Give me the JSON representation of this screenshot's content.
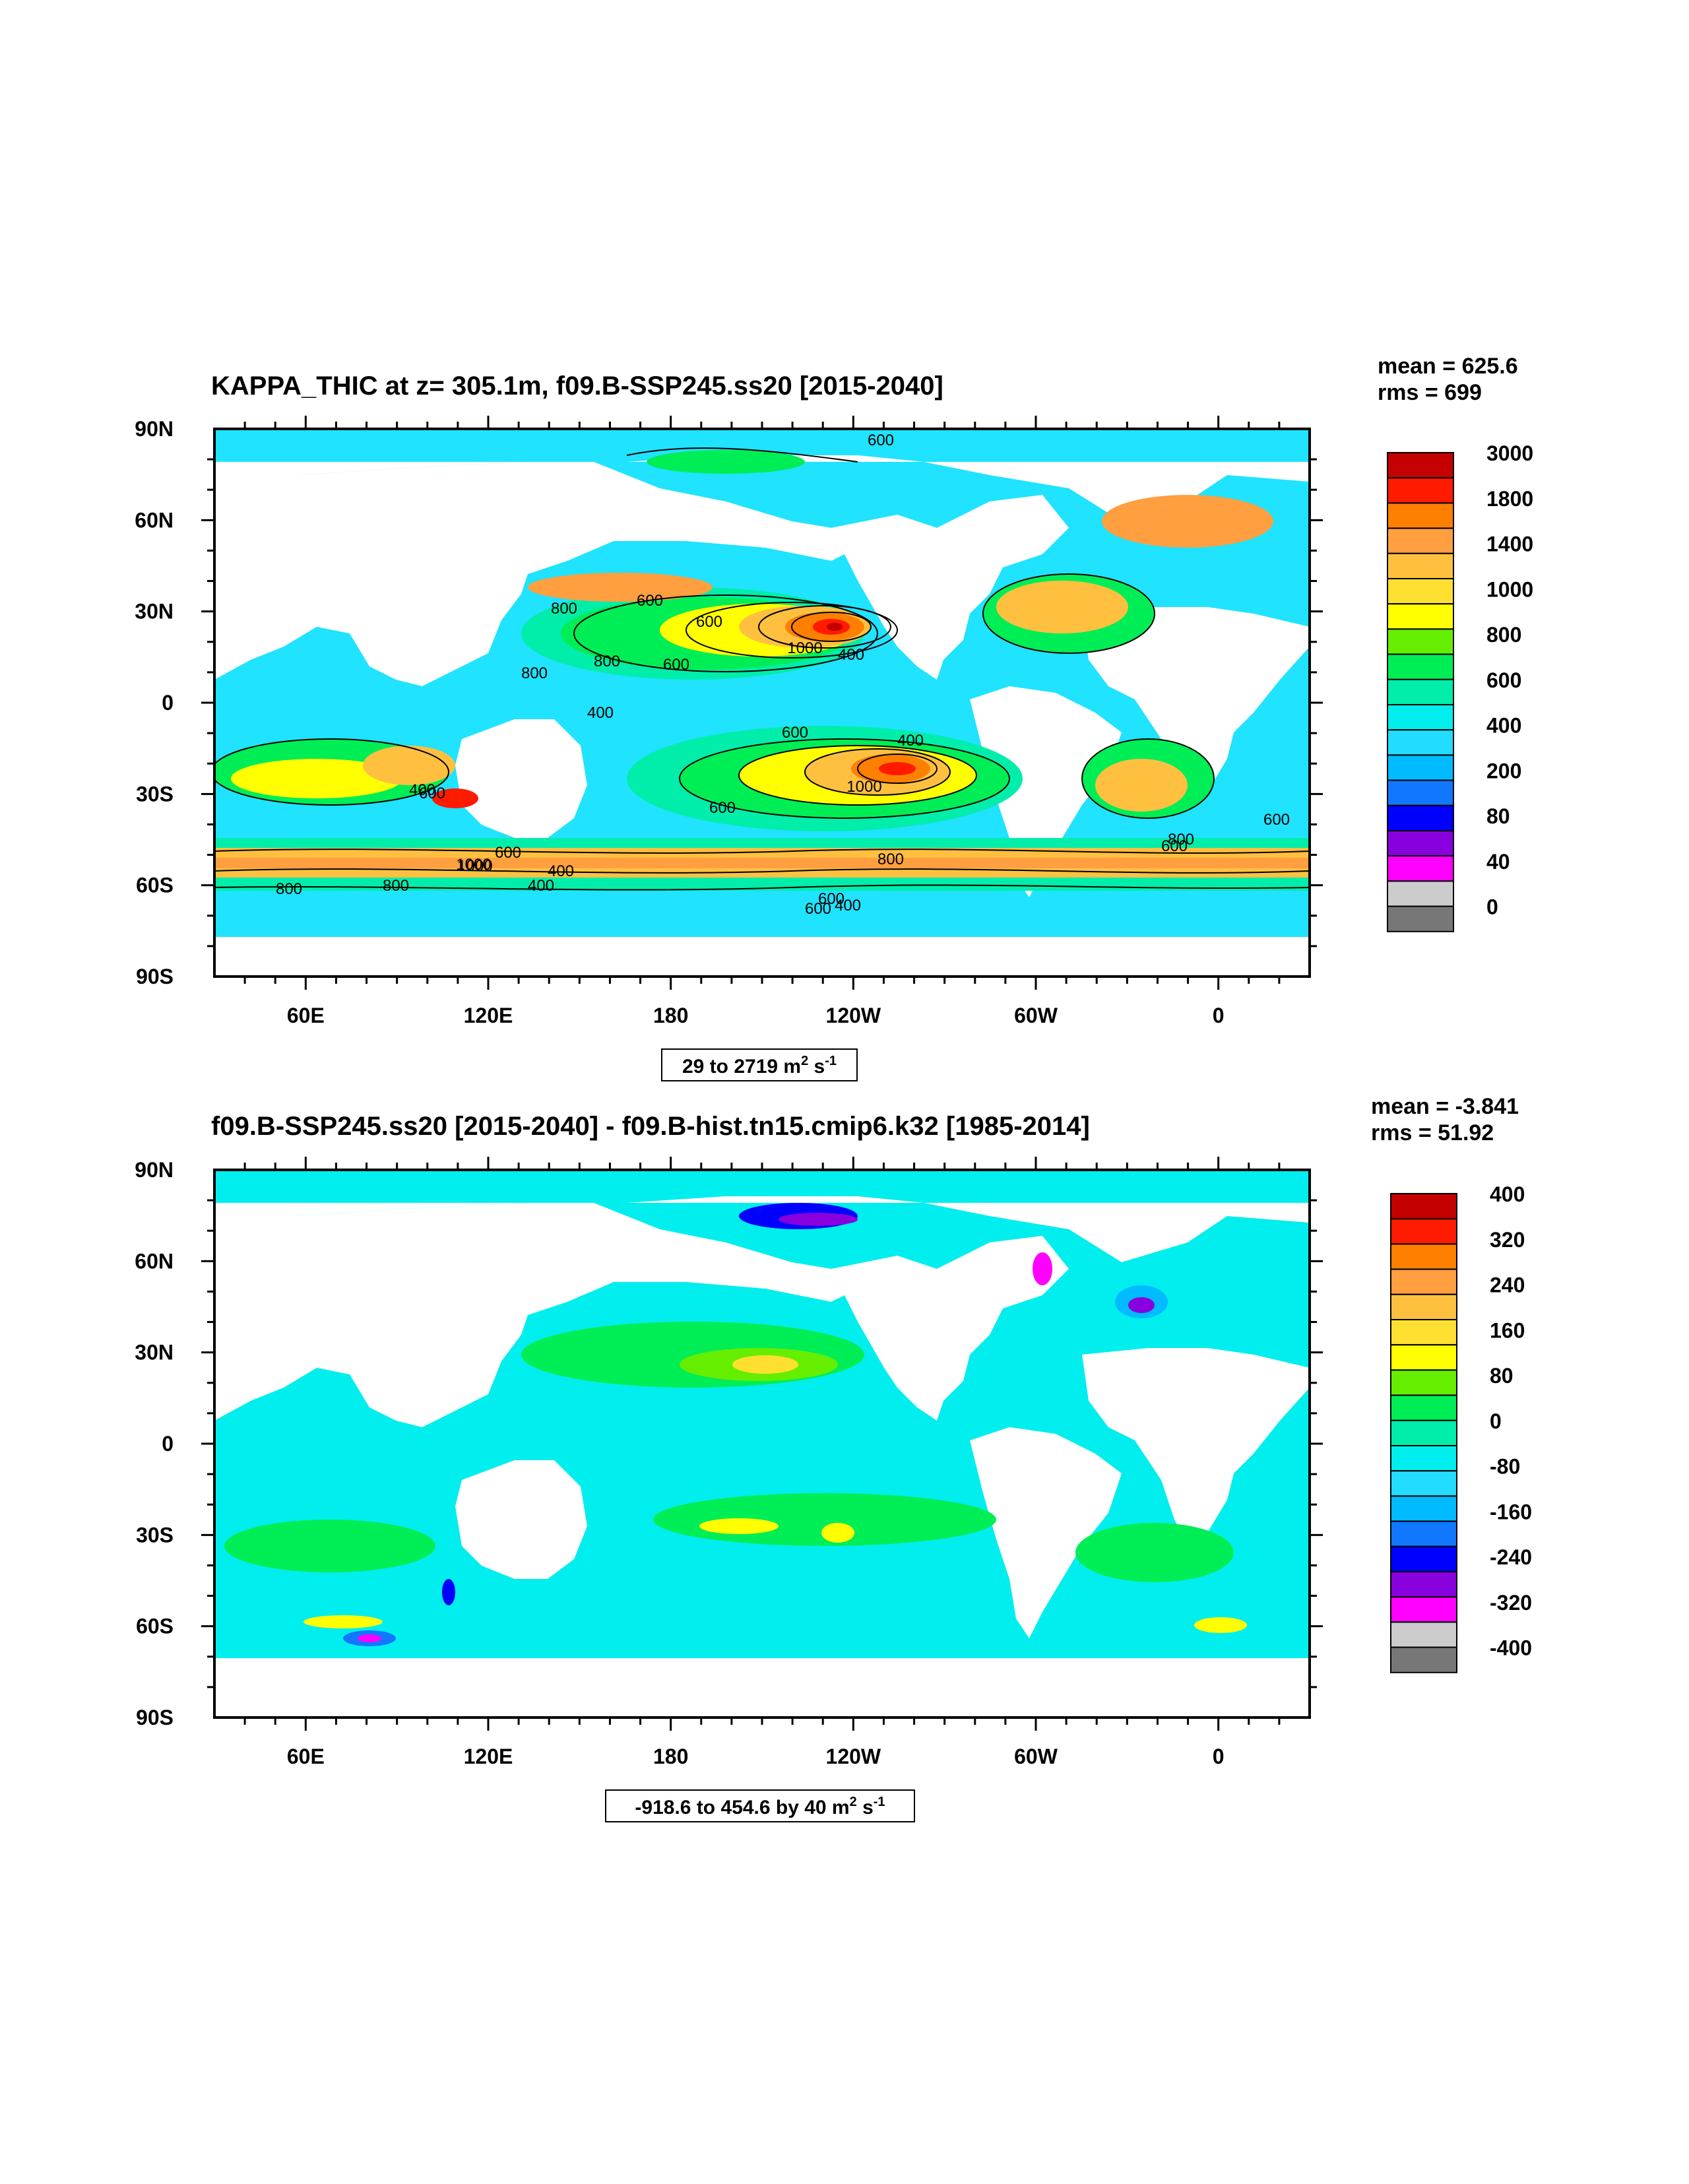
{
  "panels": [
    {
      "id": "top",
      "title": "KAPPA_THIC at z= 305.1m, f09.B-SSP245.ss20 [2015-2040]",
      "stats": {
        "mean": "mean = 625.6",
        "rms": "rms = 699"
      },
      "lat_labels": [
        "90N",
        "60N",
        "30N",
        "0",
        "30S",
        "60S",
        "90S"
      ],
      "lon_labels": [
        "60E",
        "120E",
        "180",
        "120W",
        "60W",
        "0"
      ],
      "range_label": {
        "main": "29 to 2719 m",
        "sup1": "2",
        "mid": " s",
        "sup2": "-1"
      },
      "colorbar_labels": [
        "3000",
        "1800",
        "1400",
        "1000",
        "800",
        "600",
        "400",
        "200",
        "80",
        "40",
        "0"
      ],
      "contour_labels": [
        "600",
        "800",
        "600",
        "600",
        "800",
        "1000",
        "400",
        "800",
        "600",
        "400",
        "400",
        "600",
        "400",
        "1000",
        "600",
        "600",
        "600",
        "800",
        "1000",
        "400",
        "600",
        "800",
        "400",
        "600",
        "800",
        "800",
        "600",
        "1000",
        "600",
        "400"
      ]
    },
    {
      "id": "bottom",
      "title": "f09.B-SSP245.ss20 [2015-2040] - f09.B-hist.tn15.cmip6.k32 [1985-2014]",
      "stats": {
        "mean": "mean = -3.841",
        "rms": "rms = 51.92"
      },
      "lat_labels": [
        "90N",
        "60N",
        "30N",
        "0",
        "30S",
        "60S",
        "90S"
      ],
      "lon_labels": [
        "60E",
        "120E",
        "180",
        "120W",
        "60W",
        "0"
      ],
      "range_label": {
        "main": "-918.6 to 454.6 by 40 m",
        "sup1": "2",
        "mid": " s",
        "sup2": "-1"
      },
      "colorbar_labels": [
        "400",
        "320",
        "240",
        "160",
        "80",
        "0",
        "-80",
        "-160",
        "-240",
        "-320",
        "-400"
      ]
    }
  ],
  "colors": {
    "ocean_low": "#1fe3ff",
    "land": "#ffffff",
    "colorbar": [
      "#c40000",
      "#ff1a00",
      "#ff7f00",
      "#ff9f40",
      "#ffc040",
      "#ffe030",
      "#ffff00",
      "#66ee00",
      "#00ee55",
      "#00eeaa",
      "#00eeee",
      "#22ddff",
      "#00bbff",
      "#1177ff",
      "#0000ff",
      "#8800dd",
      "#ff00ff",
      "#cccccc",
      "#777777"
    ]
  }
}
